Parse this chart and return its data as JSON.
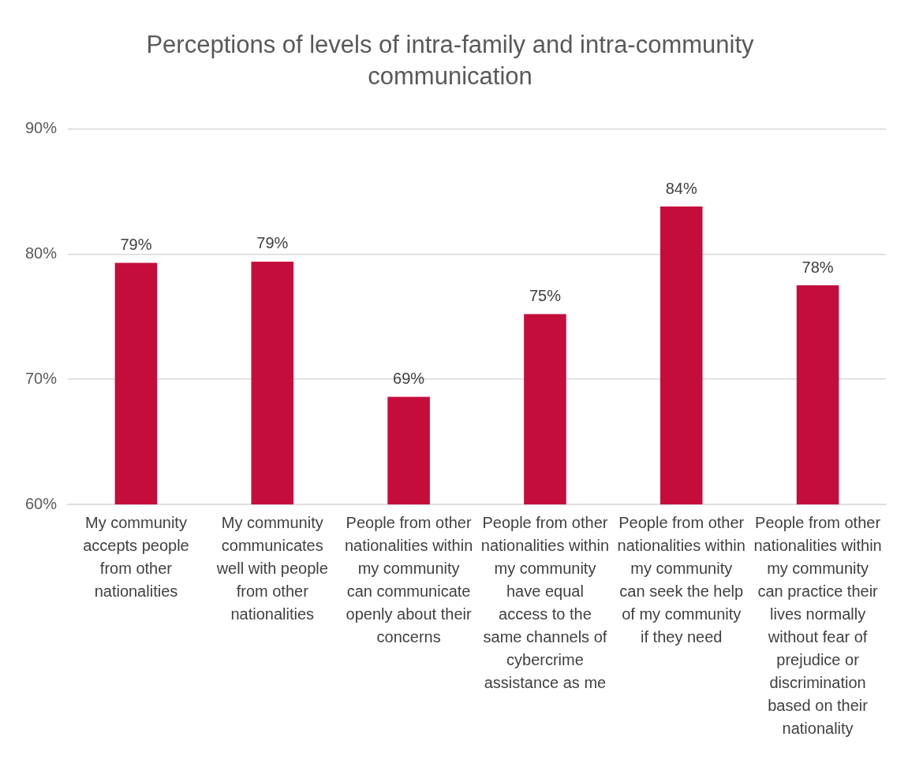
{
  "chart_data": {
    "type": "bar",
    "title": "Perceptions of levels of intra-family and intra-community communication",
    "categories": [
      "My community accepts people from other nationalities",
      "My community communicates well with people from other nationalities",
      "People from other nationalities within my community can communicate openly about their concerns",
      "People from other nationalities within my community have equal access to the same channels of cybercrime assistance as me",
      "People from other nationalities within my community can seek the help of my community if they need",
      "People from other nationalities within my community can practice their lives normally without fear of prejudice or discrimination based on their nationality"
    ],
    "values": [
      79.3,
      79.4,
      68.6,
      75.2,
      83.8,
      77.5
    ],
    "value_labels": [
      "79%",
      "79%",
      "69%",
      "75%",
      "84%",
      "78%"
    ],
    "color": "#c50d3c",
    "ylim": [
      60,
      90
    ],
    "yticks": [
      {
        "value": 60,
        "label": "60%"
      },
      {
        "value": 70,
        "label": "70%"
      },
      {
        "value": 80,
        "label": "80%"
      },
      {
        "value": 90,
        "label": "90%"
      }
    ],
    "grid": "y",
    "legend": false
  }
}
